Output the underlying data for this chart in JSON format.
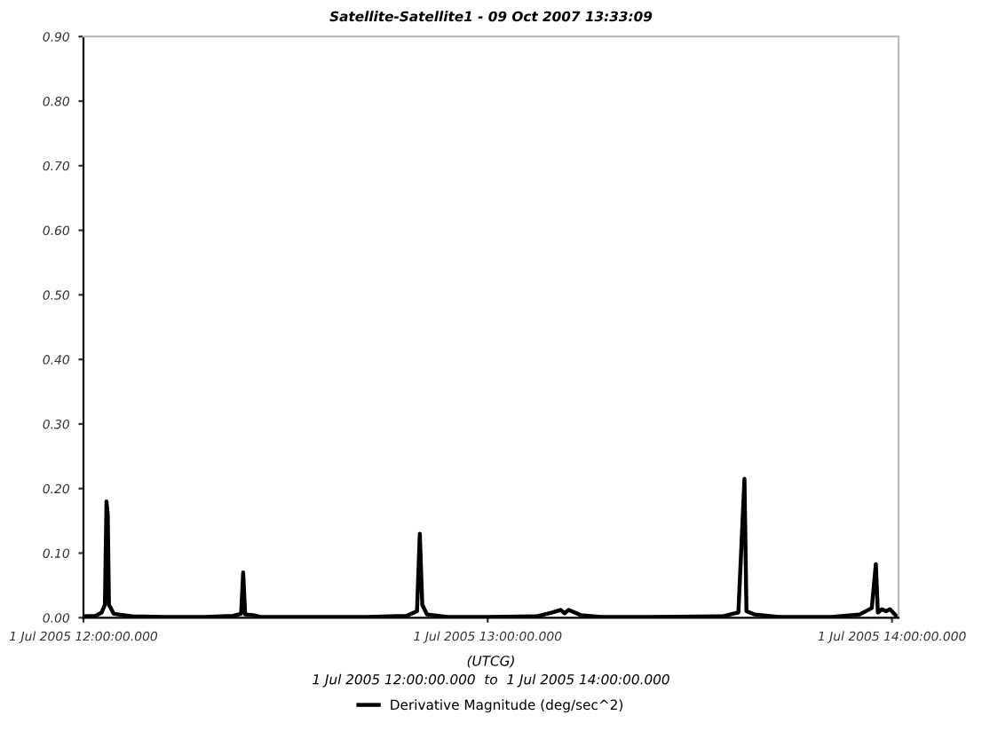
{
  "chart_data": {
    "type": "line",
    "title": "Satellite-Satellite1 - 09 Oct 2007 13:33:09",
    "xlabel": "(UTCG)",
    "annotations": [
      "1 Jul 2005 12:00:00.000  to  1 Jul 2005 14:00:00.000"
    ],
    "x": [
      "2005-07-01T12:00:00",
      "2005-07-01T12:01:48",
      "2005-07-01T12:02:42",
      "2005-07-01T12:03:11",
      "2005-07-01T12:03:25",
      "2005-07-01T12:03:36",
      "2005-07-01T12:03:47",
      "2005-07-01T12:04:30",
      "2005-07-01T12:07:12",
      "2005-07-01T12:12:00",
      "2005-07-01T12:18:00",
      "2005-07-01T12:22:12",
      "2005-07-01T12:23:24",
      "2005-07-01T12:23:42",
      "2005-07-01T12:24:00",
      "2005-07-01T12:25:12",
      "2005-07-01T12:26:24",
      "2005-07-01T12:33:00",
      "2005-07-01T12:42:00",
      "2005-07-01T12:48:00",
      "2005-07-01T12:49:30",
      "2005-07-01T12:49:55",
      "2005-07-01T12:50:17",
      "2005-07-01T12:51:00",
      "2005-07-01T12:54:00",
      "2005-07-01T13:00:00",
      "2005-07-01T13:07:12",
      "2005-07-01T13:09:36",
      "2005-07-01T13:10:48",
      "2005-07-01T13:11:24",
      "2005-07-01T13:12:00",
      "2005-07-01T13:13:48",
      "2005-07-01T13:16:48",
      "2005-07-01T13:24:00",
      "2005-07-01T13:34:48",
      "2005-07-01T13:37:12",
      "2005-07-01T13:38:06",
      "2005-07-01T13:38:24",
      "2005-07-01T13:39:36",
      "2005-07-01T13:43:12",
      "2005-07-01T13:51:00",
      "2005-07-01T13:55:12",
      "2005-07-01T13:57:00",
      "2005-07-01T13:57:36",
      "2005-07-01T13:57:54",
      "2005-07-01T13:58:30",
      "2005-07-01T13:59:06",
      "2005-07-01T13:59:42",
      "2005-07-01T14:00:36"
    ],
    "series": [
      {
        "name": "Derivative Magnitude (deg/sec^2)",
        "color": "#000000",
        "values": [
          0.002,
          0.003,
          0.008,
          0.02,
          0.18,
          0.16,
          0.02,
          0.006,
          0.002,
          0.001,
          0.001,
          0.003,
          0.006,
          0.07,
          0.005,
          0.004,
          0.001,
          0.001,
          0.001,
          0.003,
          0.01,
          0.13,
          0.02,
          0.005,
          0.001,
          0.001,
          0.002,
          0.008,
          0.012,
          0.007,
          0.012,
          0.004,
          0.001,
          0.001,
          0.002,
          0.008,
          0.215,
          0.01,
          0.005,
          0.001,
          0.001,
          0.005,
          0.015,
          0.083,
          0.008,
          0.013,
          0.01,
          0.013,
          0.003
        ]
      }
    ],
    "xlim": [
      "2005-07-01T12:00:00",
      "2005-07-01T14:00:58"
    ],
    "xticks": [
      {
        "value": "2005-07-01T12:00:00",
        "label": "1 Jul 2005 12:00:00.000"
      },
      {
        "value": "2005-07-01T13:00:00",
        "label": "1 Jul 2005 13:00:00.000"
      },
      {
        "value": "2005-07-01T14:00:00",
        "label": "1 Jul 2005 14:00:00.000"
      }
    ],
    "ylim": [
      0,
      0.9
    ],
    "yticks": [
      {
        "value": 0,
        "label": "0.00"
      },
      {
        "value": 0.1,
        "label": "0.10"
      },
      {
        "value": 0.2,
        "label": "0.20"
      },
      {
        "value": 0.3,
        "label": "0.30"
      },
      {
        "value": 0.4,
        "label": "0.40"
      },
      {
        "value": 0.5,
        "label": "0.50"
      },
      {
        "value": 0.6,
        "label": "0.60"
      },
      {
        "value": 0.7,
        "label": "0.70"
      },
      {
        "value": 0.8,
        "label": "0.80"
      },
      {
        "value": 0.9,
        "label": "0.90"
      }
    ],
    "legend": "bottom",
    "marker": "none",
    "line_style": "solid"
  }
}
